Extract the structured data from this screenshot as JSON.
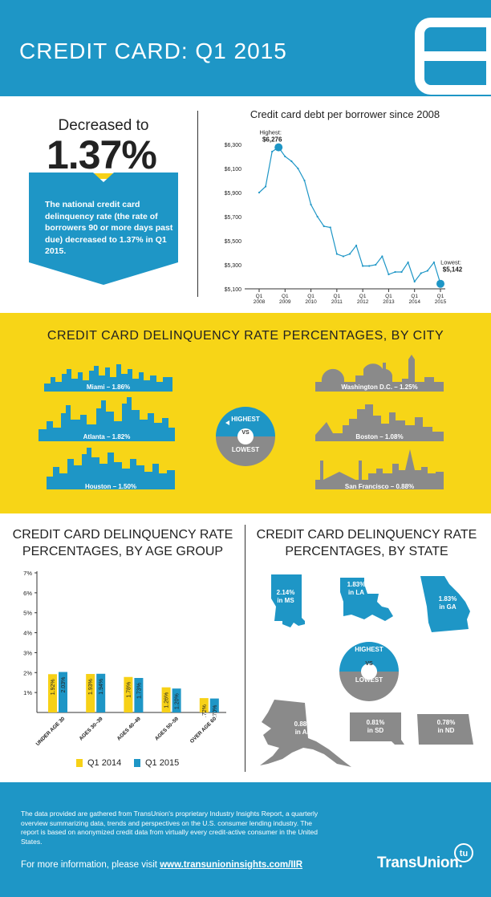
{
  "header": {
    "title": "CREDIT CARD: Q1 2015"
  },
  "summary": {
    "label": "Decreased to",
    "value": "1.37%",
    "description": "The national credit card delinquency rate (the rate of borrowers 90 or more days past due) decreased to 1.37% in Q1 2015."
  },
  "colors": {
    "blue": "#1e96c6",
    "yellow": "#f7d517",
    "gray": "#8a8a8a",
    "bar_q1_2014": "#f7d117",
    "bar_q1_2015": "#1e96c6"
  },
  "chart_data": [
    {
      "type": "line",
      "title": "Credit card debt per borrower since 2008",
      "y_ticks": [
        "$6,300",
        "$6,100",
        "$5,900",
        "$5,700",
        "$5,500",
        "$5,300",
        "$5,100"
      ],
      "x_ticks": [
        {
          "q": "Q1",
          "y": "2008"
        },
        {
          "q": "Q1",
          "y": "2009"
        },
        {
          "q": "Q1",
          "y": "2010"
        },
        {
          "q": "Q1",
          "y": "2011"
        },
        {
          "q": "Q1",
          "y": "2012"
        },
        {
          "q": "Q1",
          "y": "2013"
        },
        {
          "q": "Q1",
          "y": "2014"
        },
        {
          "q": "Q1",
          "y": "2015"
        }
      ],
      "ylim": [
        5100,
        6300
      ],
      "values": [
        5900,
        5950,
        6240,
        6276,
        6200,
        6160,
        6100,
        6000,
        5800,
        5700,
        5620,
        5610,
        5390,
        5370,
        5390,
        5460,
        5290,
        5290,
        5300,
        5370,
        5220,
        5240,
        5240,
        5320,
        5160,
        5230,
        5250,
        5320,
        5142
      ],
      "annotations": {
        "highest_label": "Highest:",
        "highest_value": "$6,276",
        "lowest_label": "Lowest:",
        "lowest_value": "$5,142"
      }
    },
    {
      "type": "bar",
      "title": "CREDIT CARD DELINQUENCY RATE PERCENTAGES, BY AGE GROUP",
      "categories": [
        "UNDER AGE 30",
        "AGES 30–39",
        "AGES 40–49",
        "AGES 50–59",
        "OVER AGE 60"
      ],
      "series": [
        {
          "name": "Q1 2014",
          "values": [
            1.92,
            1.93,
            1.78,
            1.26,
            0.72
          ],
          "labels": [
            "1.92%",
            "1.93%",
            "1.78%",
            "1.26%",
            ".72%"
          ]
        },
        {
          "name": "Q1 2015",
          "values": [
            2.03,
            1.94,
            1.73,
            1.2,
            0.7
          ],
          "labels": [
            "2.03%",
            "1.94%",
            "1.73%",
            "1.20%",
            ".70%"
          ]
        }
      ],
      "y_ticks": [
        "7%",
        "6%",
        "5%",
        "4%",
        "3%",
        "2%",
        "1%"
      ],
      "ylim": [
        0,
        7
      ]
    }
  ],
  "cities": {
    "title": "CREDIT CARD DELINQUENCY RATE PERCENTAGES, BY CITY",
    "highest": [
      {
        "label": "Miami – 1.86%"
      },
      {
        "label": "Atlanta – 1.82%"
      },
      {
        "label": "Houston – 1.50%"
      }
    ],
    "lowest": [
      {
        "label": "Washington D.C. – 1.25%"
      },
      {
        "label": "Boston – 1.08%"
      },
      {
        "label": "San Francisco – 0.88%"
      }
    ],
    "vs_highest": "HIGHEST",
    "vs_lowest": "LOWEST",
    "vs": "VS"
  },
  "states": {
    "title": "CREDIT CARD DELINQUENCY RATE PERCENTAGES, BY STATE",
    "ms": {
      "value": "2.14%",
      "label": "in MS"
    },
    "la": {
      "value": "1.83%",
      "label": "in LA"
    },
    "ga": {
      "value": "1.83%",
      "label": "in GA"
    },
    "ak": {
      "value": "0.88%",
      "label": "in AK"
    },
    "sd": {
      "value": "0.81%",
      "label": "in SD"
    },
    "nd": {
      "value": "0.78%",
      "label": "in ND"
    },
    "vs_highest": "HIGHEST",
    "vs_lowest": "LOWEST",
    "vs": "VS"
  },
  "footer": {
    "text": "The data provided are gathered from TransUnion's proprietary Industry Insights Report, a quarterly overview summarizing data, trends and perspectives on the U.S. consumer lending industry. The report is based on anonymized credit data from virtually every credit-active consumer in the United States.",
    "link_prefix": "For more information, please visit ",
    "link_text": "www.transunioninsights.com/IIR",
    "logo": "TransUnion.",
    "logo_mark": "tu"
  }
}
